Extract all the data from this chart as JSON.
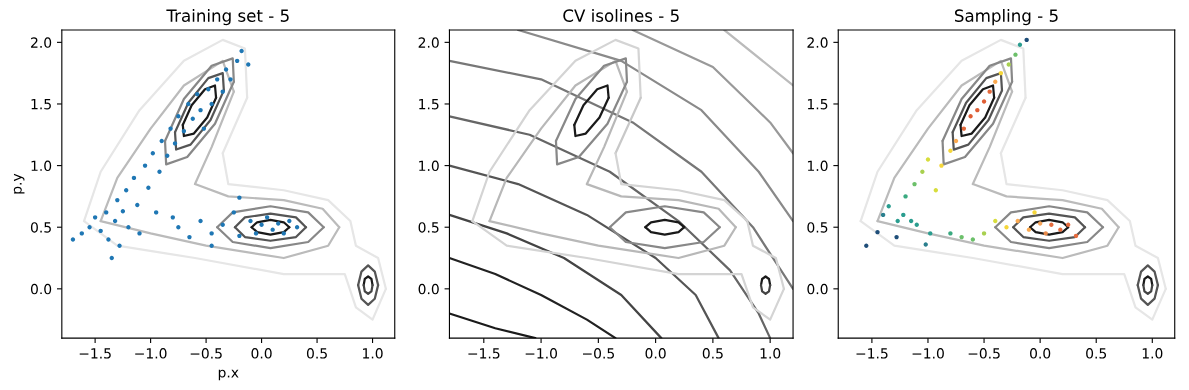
{
  "chart_data": [
    {
      "type": "scatter",
      "title": "Training set - 5",
      "xlabel": "p.x",
      "ylabel": "p.y",
      "xlim": [
        -1.8,
        1.2
      ],
      "ylim": [
        -0.4,
        2.1
      ],
      "xticks": [
        {
          "value": -1.5,
          "label": "−1.5"
        },
        {
          "value": -1.0,
          "label": "−1.0"
        },
        {
          "value": -0.5,
          "label": "−0.5"
        },
        {
          "value": 0.0,
          "label": "0.0"
        },
        {
          "value": 0.5,
          "label": "0.5"
        },
        {
          "value": 1.0,
          "label": "1.0"
        }
      ],
      "yticks": [
        {
          "value": 0.0,
          "label": "0.0"
        },
        {
          "value": 0.5,
          "label": "0.5"
        },
        {
          "value": 1.0,
          "label": "1.0"
        },
        {
          "value": 1.5,
          "label": "1.5"
        },
        {
          "value": 2.0,
          "label": "2.0"
        }
      ],
      "series": [
        {
          "type": "line",
          "color": "#e6e6e6",
          "x": [
            -1.6,
            -1.45,
            -1.1,
            -0.7,
            -0.35,
            -0.15,
            -0.13
          ],
          "values": [
            0.55,
            0.95,
            1.45,
            1.85,
            2.02,
            1.95,
            1.55
          ]
        },
        {
          "type": "line",
          "color": "#e6e6e6",
          "x": [
            -0.35,
            -0.13
          ],
          "values": [
            1.1,
            1.55
          ]
        },
        {
          "type": "line",
          "color": "#e6e6e6",
          "x": [
            -0.35,
            -0.3,
            0.2,
            0.6,
            0.8,
            0.85,
            1.05,
            1.12
          ],
          "values": [
            1.1,
            0.85,
            0.8,
            0.72,
            0.55,
            0.35,
            0.25,
            0.0
          ]
        },
        {
          "type": "line",
          "color": "#e6e6e6",
          "x": [
            -1.6,
            -1.3,
            -0.6,
            0.2,
            0.75,
            0.85,
            1.0,
            1.12
          ],
          "values": [
            0.55,
            0.35,
            0.25,
            0.12,
            0.12,
            -0.15,
            -0.25,
            0.0
          ]
        },
        {
          "type": "line",
          "color": "#bbbbbb",
          "x": [
            -1.45,
            -1.3,
            -1.0,
            -0.7,
            -0.35,
            -0.25
          ],
          "values": [
            0.55,
            0.9,
            1.3,
            1.65,
            1.85,
            1.6
          ]
        },
        {
          "type": "line",
          "color": "#bbbbbb",
          "x": [
            -0.6,
            -0.45,
            -0.25
          ],
          "values": [
            0.85,
            1.15,
            1.6
          ]
        },
        {
          "type": "line",
          "color": "#bbbbbb",
          "x": [
            -0.6,
            -0.3,
            0.2,
            0.55,
            0.7
          ],
          "values": [
            0.85,
            0.75,
            0.72,
            0.65,
            0.5
          ]
        },
        {
          "type": "line",
          "color": "#bbbbbb",
          "x": [
            -1.45,
            -1.0,
            -0.5,
            0.2,
            0.6,
            0.7
          ],
          "values": [
            0.55,
            0.45,
            0.35,
            0.25,
            0.35,
            0.5
          ]
        },
        {
          "type": "line",
          "color": "#888888",
          "x": [
            -0.87,
            -0.7,
            -0.45,
            -0.26,
            -0.25
          ],
          "values": [
            1.2,
            1.54,
            1.81,
            1.87,
            1.68
          ]
        },
        {
          "type": "line",
          "color": "#888888",
          "x": [
            -0.87,
            -0.86,
            -0.67,
            -0.42,
            -0.25
          ],
          "values": [
            1.2,
            1.01,
            1.07,
            1.34,
            1.68
          ]
        },
        {
          "type": "line",
          "color": "#555555",
          "x": [
            -0.78,
            -0.66,
            -0.48,
            -0.35,
            -0.34
          ],
          "values": [
            1.27,
            1.51,
            1.71,
            1.75,
            1.61
          ]
        },
        {
          "type": "line",
          "color": "#555555",
          "x": [
            -0.78,
            -0.77,
            -0.64,
            -0.46,
            -0.34
          ],
          "values": [
            1.27,
            1.13,
            1.17,
            1.37,
            1.61
          ]
        },
        {
          "type": "line",
          "color": "#1a1a1a",
          "x": [
            -0.71,
            -0.63,
            -0.51,
            -0.42,
            -0.41
          ],
          "values": [
            1.33,
            1.49,
            1.62,
            1.65,
            1.55
          ]
        },
        {
          "type": "line",
          "color": "#1a1a1a",
          "x": [
            -0.71,
            -0.7,
            -0.61,
            -0.49,
            -0.41
          ],
          "values": [
            1.33,
            1.24,
            1.26,
            1.39,
            1.55
          ]
        },
        {
          "type": "line",
          "color": "#888888",
          "x": [
            -0.4,
            -0.26,
            0.08,
            0.42,
            0.56
          ],
          "values": [
            0.5,
            0.62,
            0.67,
            0.62,
            0.5
          ]
        },
        {
          "type": "line",
          "color": "#888888",
          "x": [
            -0.4,
            -0.26,
            0.08,
            0.42,
            0.56
          ],
          "values": [
            0.5,
            0.38,
            0.33,
            0.38,
            0.5
          ]
        },
        {
          "type": "line",
          "color": "#555555",
          "x": [
            -0.24,
            -0.15,
            0.08,
            0.31,
            0.4
          ],
          "values": [
            0.5,
            0.58,
            0.61,
            0.58,
            0.5
          ]
        },
        {
          "type": "line",
          "color": "#555555",
          "x": [
            -0.24,
            -0.15,
            0.08,
            0.31,
            0.4
          ],
          "values": [
            0.5,
            0.42,
            0.39,
            0.42,
            0.5
          ]
        },
        {
          "type": "line",
          "color": "#1a1a1a",
          "x": [
            -0.09,
            -0.04,
            0.08,
            0.2,
            0.25
          ],
          "values": [
            0.5,
            0.54,
            0.56,
            0.54,
            0.5
          ]
        },
        {
          "type": "line",
          "color": "#1a1a1a",
          "x": [
            -0.09,
            -0.04,
            0.08,
            0.2,
            0.25
          ],
          "values": [
            0.5,
            0.46,
            0.44,
            0.46,
            0.5
          ]
        },
        {
          "type": "line",
          "color": "#555555",
          "x": [
            0.87,
            0.9,
            0.96,
            1.02,
            1.05
          ],
          "values": [
            0.03,
            0.14,
            0.19,
            0.14,
            0.03
          ]
        },
        {
          "type": "line",
          "color": "#555555",
          "x": [
            0.87,
            0.9,
            0.96,
            1.02,
            1.05
          ],
          "values": [
            0.03,
            -0.08,
            -0.13,
            -0.08,
            0.03
          ]
        },
        {
          "type": "line",
          "color": "#1a1a1a",
          "x": [
            0.92,
            0.93,
            0.96,
            0.99,
            1.0
          ],
          "values": [
            0.03,
            0.08,
            0.1,
            0.08,
            0.03
          ]
        },
        {
          "type": "line",
          "color": "#444444",
          "x": [
            0.92,
            0.93,
            0.96,
            0.99,
            1.0
          ],
          "values": [
            0.03,
            -0.02,
            -0.04,
            -0.02,
            0.03
          ]
        },
        {
          "marker": "circle",
          "color": "#1f77b4",
          "x": [
            -1.7,
            -1.62,
            -1.55,
            -1.5,
            -1.45,
            -1.4,
            -1.38,
            -1.35,
            -1.32,
            -1.3,
            -1.28,
            -1.25,
            -1.22,
            -1.2,
            -1.15,
            -1.12,
            -1.1,
            -1.05,
            -1.02,
            -0.98,
            -0.95,
            -0.92,
            -0.9,
            -0.85,
            -0.82,
            -0.78,
            -0.75,
            -0.7,
            -0.66,
            -0.62,
            -0.58,
            -0.55,
            -0.52,
            -0.48,
            -0.45,
            -0.4,
            -0.35,
            -0.32,
            -0.28,
            -0.22,
            -0.18,
            -0.12,
            -0.75,
            -0.65,
            -0.55,
            -0.45,
            -0.35,
            -0.25,
            -0.2,
            -0.1,
            -0.05,
            0.0,
            0.05,
            0.1,
            0.15,
            0.2,
            0.25,
            0.32,
            -0.2,
            -0.45,
            -0.8
          ],
          "values": [
            0.4,
            0.45,
            0.5,
            0.58,
            0.47,
            0.62,
            0.4,
            0.25,
            0.55,
            0.72,
            0.35,
            0.63,
            0.8,
            0.5,
            0.9,
            0.68,
            0.45,
            1.0,
            0.82,
            1.1,
            0.62,
            0.95,
            1.2,
            1.08,
            1.3,
            1.18,
            1.4,
            1.28,
            1.5,
            1.38,
            1.58,
            1.45,
            1.3,
            1.62,
            1.5,
            1.7,
            1.6,
            1.78,
            1.7,
            1.85,
            1.93,
            1.82,
            0.5,
            0.42,
            0.55,
            0.45,
            0.52,
            0.62,
            0.43,
            0.55,
            0.45,
            0.52,
            0.58,
            0.48,
            0.53,
            0.45,
            0.55,
            0.5,
            0.74,
            0.35,
            0.58
          ]
        }
      ]
    },
    {
      "type": "scatter",
      "title": "CV isolines - 5",
      "xlim": [
        -1.8,
        1.2
      ],
      "ylim": [
        -0.4,
        2.1
      ],
      "xticks": [
        {
          "value": -1.5,
          "label": "−1.5"
        },
        {
          "value": -1.0,
          "label": "−1.0"
        },
        {
          "value": -0.5,
          "label": "−0.5"
        },
        {
          "value": 0.0,
          "label": "0.0"
        },
        {
          "value": 0.5,
          "label": "0.5"
        },
        {
          "value": 1.0,
          "label": "1.0"
        }
      ],
      "yticks": [
        {
          "value": 0.0,
          "label": "0.0"
        },
        {
          "value": 0.5,
          "label": "0.5"
        },
        {
          "value": 1.0,
          "label": "1.0"
        },
        {
          "value": 1.5,
          "label": "1.5"
        },
        {
          "value": 2.0,
          "label": "2.0"
        }
      ],
      "series": [
        {
          "type": "line",
          "color": "#1a1a1a",
          "x": [
            -1.8,
            -1.4,
            -1.05
          ],
          "values": [
            -0.2,
            -0.32,
            -0.4
          ]
        },
        {
          "type": "line",
          "color": "#222222",
          "x": [
            -1.8,
            -1.4,
            -1.0,
            -0.6,
            -0.35
          ],
          "values": [
            0.25,
            0.12,
            -0.05,
            -0.25,
            -0.4
          ]
        },
        {
          "type": "line",
          "color": "#444444",
          "x": [
            -1.8,
            -1.3,
            -0.8,
            -0.3,
            0.05
          ],
          "values": [
            0.6,
            0.45,
            0.25,
            -0.05,
            -0.4
          ]
        },
        {
          "type": "line",
          "color": "#555555",
          "x": [
            -1.8,
            -1.2,
            -0.6,
            0.0,
            0.35,
            0.55
          ],
          "values": [
            1.0,
            0.85,
            0.6,
            0.25,
            -0.05,
            -0.4
          ]
        },
        {
          "type": "line",
          "color": "#666666",
          "x": [
            -1.8,
            -1.1,
            -0.4,
            0.2,
            0.65,
            0.9,
            1.0
          ],
          "values": [
            1.4,
            1.25,
            0.95,
            0.55,
            0.15,
            -0.2,
            -0.4
          ]
        },
        {
          "type": "line",
          "color": "#777777",
          "x": [
            -1.8,
            -1.0,
            -0.2,
            0.4,
            0.85,
            1.2
          ],
          "values": [
            1.85,
            1.7,
            1.35,
            0.95,
            0.5,
            0.0
          ]
        },
        {
          "type": "line",
          "color": "#8a8a8a",
          "x": [
            -1.2,
            -0.3,
            0.4,
            0.9,
            1.2
          ],
          "values": [
            2.1,
            1.85,
            1.45,
            0.95,
            0.55
          ]
        },
        {
          "type": "line",
          "color": "#999999",
          "x": [
            -0.2,
            0.5,
            1.0,
            1.2
          ],
          "values": [
            2.1,
            1.8,
            1.35,
            1.1
          ]
        },
        {
          "type": "line",
          "color": "#bbbbbb",
          "x": [
            0.6,
            1.2
          ],
          "values": [
            2.1,
            1.65
          ]
        },
        {
          "type": "line",
          "color": "#d4d4d4",
          "x": [
            -1.6,
            -1.45,
            -1.1,
            -0.7,
            -0.35,
            -0.15,
            -0.13
          ],
          "values": [
            0.55,
            0.95,
            1.45,
            1.85,
            2.02,
            1.95,
            1.55
          ]
        },
        {
          "type": "line",
          "color": "#c8c8c8",
          "x": [
            -0.35,
            -0.13
          ],
          "values": [
            1.1,
            1.55
          ]
        },
        {
          "type": "line",
          "color": "#d4d4d4",
          "x": [
            -0.35,
            -0.3,
            0.2,
            0.6,
            0.8,
            0.85,
            1.05,
            1.12
          ],
          "values": [
            1.1,
            0.85,
            0.8,
            0.72,
            0.55,
            0.35,
            0.25,
            0.0
          ]
        },
        {
          "type": "line",
          "color": "#d4d4d4",
          "x": [
            -1.6,
            -1.3,
            -0.6,
            0.2,
            0.75,
            0.85,
            1.0,
            1.12
          ],
          "values": [
            0.55,
            0.35,
            0.25,
            0.12,
            0.12,
            -0.15,
            -0.25,
            0.0
          ]
        },
        {
          "type": "line",
          "color": "#b8b8b8",
          "x": [
            -1.45,
            -1.3,
            -1.0,
            -0.7,
            -0.35,
            -0.25
          ],
          "values": [
            0.55,
            0.9,
            1.3,
            1.65,
            1.85,
            1.6
          ]
        },
        {
          "type": "line",
          "color": "#b8b8b8",
          "x": [
            -0.6,
            -0.45,
            -0.25
          ],
          "values": [
            0.85,
            1.15,
            1.6
          ]
        },
        {
          "type": "line",
          "color": "#b8b8b8",
          "x": [
            -0.6,
            -0.3,
            0.2,
            0.55,
            0.7
          ],
          "values": [
            0.85,
            0.75,
            0.72,
            0.65,
            0.5
          ]
        },
        {
          "type": "line",
          "color": "#b8b8b8",
          "x": [
            -1.45,
            -1.0,
            -0.5,
            0.2,
            0.6,
            0.7
          ],
          "values": [
            0.55,
            0.45,
            0.35,
            0.25,
            0.35,
            0.5
          ]
        },
        {
          "type": "line",
          "color": "#888888",
          "x": [
            -0.87,
            -0.7,
            -0.45,
            -0.26,
            -0.25
          ],
          "values": [
            1.2,
            1.54,
            1.81,
            1.87,
            1.68
          ]
        },
        {
          "type": "line",
          "color": "#888888",
          "x": [
            -0.87,
            -0.86,
            -0.67,
            -0.42,
            -0.25
          ],
          "values": [
            1.2,
            1.01,
            1.07,
            1.34,
            1.68
          ]
        },
        {
          "type": "line",
          "color": "#1a1a1a",
          "x": [
            -0.71,
            -0.63,
            -0.51,
            -0.42,
            -0.41
          ],
          "values": [
            1.33,
            1.49,
            1.62,
            1.65,
            1.55
          ]
        },
        {
          "type": "line",
          "color": "#1a1a1a",
          "x": [
            -0.71,
            -0.7,
            -0.61,
            -0.49,
            -0.41
          ],
          "values": [
            1.33,
            1.24,
            1.26,
            1.39,
            1.55
          ]
        },
        {
          "type": "line",
          "color": "#888888",
          "x": [
            -0.4,
            -0.26,
            0.08,
            0.42,
            0.56
          ],
          "values": [
            0.5,
            0.62,
            0.67,
            0.62,
            0.5
          ]
        },
        {
          "type": "line",
          "color": "#888888",
          "x": [
            -0.4,
            -0.26,
            0.08,
            0.42,
            0.56
          ],
          "values": [
            0.5,
            0.38,
            0.33,
            0.38,
            0.5
          ]
        },
        {
          "type": "line",
          "color": "#1a1a1a",
          "x": [
            -0.09,
            -0.04,
            0.08,
            0.2,
            0.25
          ],
          "values": [
            0.5,
            0.54,
            0.56,
            0.54,
            0.5
          ]
        },
        {
          "type": "line",
          "color": "#1a1a1a",
          "x": [
            -0.09,
            -0.04,
            0.08,
            0.2,
            0.25
          ],
          "values": [
            0.5,
            0.46,
            0.44,
            0.46,
            0.5
          ]
        },
        {
          "type": "line",
          "color": "#1a1a1a",
          "x": [
            0.92,
            0.93,
            0.96,
            0.99,
            1.0
          ],
          "values": [
            0.03,
            0.08,
            0.1,
            0.08,
            0.03
          ]
        },
        {
          "type": "line",
          "color": "#444444",
          "x": [
            0.92,
            0.93,
            0.96,
            0.99,
            1.0
          ],
          "values": [
            0.03,
            -0.02,
            -0.04,
            -0.02,
            0.03
          ]
        }
      ]
    },
    {
      "type": "scatter",
      "title": "Sampling - 5",
      "xlim": [
        -1.8,
        1.2
      ],
      "ylim": [
        -0.4,
        2.1
      ],
      "xticks": [
        {
          "value": -1.5,
          "label": "−1.5"
        },
        {
          "value": -1.0,
          "label": "−1.0"
        },
        {
          "value": -0.5,
          "label": "−0.5"
        },
        {
          "value": 0.0,
          "label": "0.0"
        },
        {
          "value": 0.5,
          "label": "0.5"
        },
        {
          "value": 1.0,
          "label": "1.0"
        }
      ],
      "yticks": [
        {
          "value": 0.0,
          "label": "0.0"
        },
        {
          "value": 0.5,
          "label": "0.5"
        },
        {
          "value": 1.0,
          "label": "1.0"
        },
        {
          "value": 1.5,
          "label": "1.5"
        },
        {
          "value": 2.0,
          "label": "2.0"
        }
      ],
      "series": [
        {
          "type": "line",
          "color": "#e6e6e6",
          "x": [
            -1.6,
            -1.45,
            -1.1,
            -0.7,
            -0.35,
            -0.15,
            -0.13
          ],
          "values": [
            0.55,
            0.95,
            1.45,
            1.85,
            2.02,
            1.95,
            1.55
          ]
        },
        {
          "type": "line",
          "color": "#e6e6e6",
          "x": [
            -0.35,
            -0.13
          ],
          "values": [
            1.1,
            1.55
          ]
        },
        {
          "type": "line",
          "color": "#e6e6e6",
          "x": [
            -0.35,
            -0.3,
            0.2,
            0.6,
            0.8,
            0.85,
            1.05,
            1.12
          ],
          "values": [
            1.1,
            0.85,
            0.8,
            0.72,
            0.55,
            0.35,
            0.25,
            0.0
          ]
        },
        {
          "type": "line",
          "color": "#e6e6e6",
          "x": [
            -1.6,
            -1.3,
            -0.6,
            0.2,
            0.75,
            0.85,
            1.0,
            1.12
          ],
          "values": [
            0.55,
            0.35,
            0.25,
            0.12,
            0.12,
            -0.15,
            -0.25,
            0.0
          ]
        },
        {
          "type": "line",
          "color": "#bbbbbb",
          "x": [
            -1.45,
            -1.3,
            -1.0,
            -0.7,
            -0.35,
            -0.25
          ],
          "values": [
            0.55,
            0.9,
            1.3,
            1.65,
            1.85,
            1.6
          ]
        },
        {
          "type": "line",
          "color": "#bbbbbb",
          "x": [
            -0.6,
            -0.45,
            -0.25
          ],
          "values": [
            0.85,
            1.15,
            1.6
          ]
        },
        {
          "type": "line",
          "color": "#bbbbbb",
          "x": [
            -0.6,
            -0.3,
            0.2,
            0.55,
            0.7
          ],
          "values": [
            0.85,
            0.75,
            0.72,
            0.65,
            0.5
          ]
        },
        {
          "type": "line",
          "color": "#bbbbbb",
          "x": [
            -1.45,
            -1.0,
            -0.5,
            0.2,
            0.6,
            0.7
          ],
          "values": [
            0.55,
            0.45,
            0.35,
            0.25,
            0.35,
            0.5
          ]
        },
        {
          "type": "line",
          "color": "#888888",
          "x": [
            -0.87,
            -0.7,
            -0.45,
            -0.26,
            -0.25
          ],
          "values": [
            1.2,
            1.54,
            1.81,
            1.87,
            1.68
          ]
        },
        {
          "type": "line",
          "color": "#888888",
          "x": [
            -0.87,
            -0.86,
            -0.67,
            -0.42,
            -0.25
          ],
          "values": [
            1.2,
            1.01,
            1.07,
            1.34,
            1.68
          ]
        },
        {
          "type": "line",
          "color": "#555555",
          "x": [
            -0.78,
            -0.66,
            -0.48,
            -0.35,
            -0.34
          ],
          "values": [
            1.27,
            1.51,
            1.71,
            1.75,
            1.61
          ]
        },
        {
          "type": "line",
          "color": "#555555",
          "x": [
            -0.78,
            -0.77,
            -0.64,
            -0.46,
            -0.34
          ],
          "values": [
            1.27,
            1.13,
            1.17,
            1.37,
            1.61
          ]
        },
        {
          "type": "line",
          "color": "#1a1a1a",
          "x": [
            -0.71,
            -0.63,
            -0.51,
            -0.42,
            -0.41
          ],
          "values": [
            1.33,
            1.49,
            1.62,
            1.65,
            1.55
          ]
        },
        {
          "type": "line",
          "color": "#1a1a1a",
          "x": [
            -0.71,
            -0.7,
            -0.61,
            -0.49,
            -0.41
          ],
          "values": [
            1.33,
            1.24,
            1.26,
            1.39,
            1.55
          ]
        },
        {
          "type": "line",
          "color": "#888888",
          "x": [
            -0.4,
            -0.26,
            0.08,
            0.42,
            0.56
          ],
          "values": [
            0.5,
            0.62,
            0.67,
            0.62,
            0.5
          ]
        },
        {
          "type": "line",
          "color": "#888888",
          "x": [
            -0.4,
            -0.26,
            0.08,
            0.42,
            0.56
          ],
          "values": [
            0.5,
            0.38,
            0.33,
            0.38,
            0.5
          ]
        },
        {
          "type": "line",
          "color": "#555555",
          "x": [
            -0.24,
            -0.15,
            0.08,
            0.31,
            0.4
          ],
          "values": [
            0.5,
            0.58,
            0.61,
            0.58,
            0.5
          ]
        },
        {
          "type": "line",
          "color": "#555555",
          "x": [
            -0.24,
            -0.15,
            0.08,
            0.31,
            0.4
          ],
          "values": [
            0.5,
            0.42,
            0.39,
            0.42,
            0.5
          ]
        },
        {
          "type": "line",
          "color": "#1a1a1a",
          "x": [
            -0.09,
            -0.04,
            0.08,
            0.2,
            0.25
          ],
          "values": [
            0.5,
            0.54,
            0.56,
            0.54,
            0.5
          ]
        },
        {
          "type": "line",
          "color": "#1a1a1a",
          "x": [
            -0.09,
            -0.04,
            0.08,
            0.2,
            0.25
          ],
          "values": [
            0.5,
            0.46,
            0.44,
            0.46,
            0.5
          ]
        },
        {
          "type": "line",
          "color": "#555555",
          "x": [
            0.87,
            0.9,
            0.96,
            1.02,
            1.05
          ],
          "values": [
            0.03,
            0.14,
            0.19,
            0.14,
            0.03
          ]
        },
        {
          "type": "line",
          "color": "#555555",
          "x": [
            0.87,
            0.9,
            0.96,
            1.02,
            1.05
          ],
          "values": [
            0.03,
            -0.08,
            -0.13,
            -0.08,
            0.03
          ]
        },
        {
          "type": "line",
          "color": "#1a1a1a",
          "x": [
            0.92,
            0.93,
            0.96,
            0.99,
            1.0
          ],
          "values": [
            0.03,
            0.08,
            0.1,
            0.08,
            0.03
          ]
        },
        {
          "type": "line",
          "color": "#444444",
          "x": [
            0.92,
            0.93,
            0.96,
            0.99,
            1.0
          ],
          "values": [
            0.03,
            -0.02,
            -0.04,
            -0.02,
            0.03
          ]
        },
        {
          "marker": "circle",
          "x": [
            -1.55,
            -1.45,
            -1.4,
            -1.35,
            -1.28,
            -1.27,
            -1.22,
            -1.15,
            -1.1,
            -1.02,
            -0.98,
            -1.2,
            -1.12,
            -1.05,
            -1.0,
            -0.93,
            -0.88,
            -0.8,
            -0.75,
            -0.68,
            -0.62,
            -0.56,
            -0.5,
            -0.45,
            -0.4,
            -0.35,
            -0.28,
            -0.22,
            -0.18,
            -0.12,
            -0.8,
            -0.7,
            -0.6,
            -0.5,
            -0.4,
            -0.3,
            -0.2,
            -0.1,
            0.0,
            0.05,
            0.1,
            0.18,
            0.25,
            0.32,
            -0.05
          ],
          "values": [
            0.35,
            0.46,
            0.6,
            0.67,
            0.42,
            0.55,
            0.6,
            0.55,
            0.52,
            0.36,
            0.45,
            0.75,
            0.85,
            0.95,
            1.05,
            0.8,
            1.0,
            1.12,
            1.2,
            1.3,
            1.4,
            1.45,
            1.52,
            1.6,
            1.68,
            1.75,
            1.82,
            1.9,
            1.98,
            2.02,
            0.45,
            0.42,
            0.4,
            0.45,
            0.55,
            0.5,
            0.55,
            0.48,
            0.53,
            0.45,
            0.52,
            0.48,
            0.52,
            0.43,
            0.62
          ],
          "colors": [
            "#1f4e79",
            "#1f4e79",
            "#2a7f8e",
            "#2a9d8f",
            "#1f4e79",
            "#2a9d8f",
            "#2a9d8f",
            "#2a9d8f",
            "#2a9d8f",
            "#2a7f8e",
            "#2a9d8f",
            "#3aaa80",
            "#6cc06a",
            "#a8d04f",
            "#d7dd3c",
            "#d7dd3c",
            "#f5d63a",
            "#f5d63a",
            "#fba94f",
            "#e56b3d",
            "#df5d34",
            "#df5d34",
            "#df5d34",
            "#e56b3d",
            "#fba94f",
            "#f5d63a",
            "#a8d04f",
            "#6cc06a",
            "#2a9d8f",
            "#1f4e79",
            "#3aaa80",
            "#6cc06a",
            "#6cc06a",
            "#a8d04f",
            "#d7dd3c",
            "#f5d63a",
            "#fba94f",
            "#fba94f",
            "#f6a45a",
            "#e88a4a",
            "#e56b3d",
            "#e56b3d",
            "#e56b3d",
            "#e56b3d",
            "#f5d63a"
          ]
        }
      ]
    }
  ]
}
